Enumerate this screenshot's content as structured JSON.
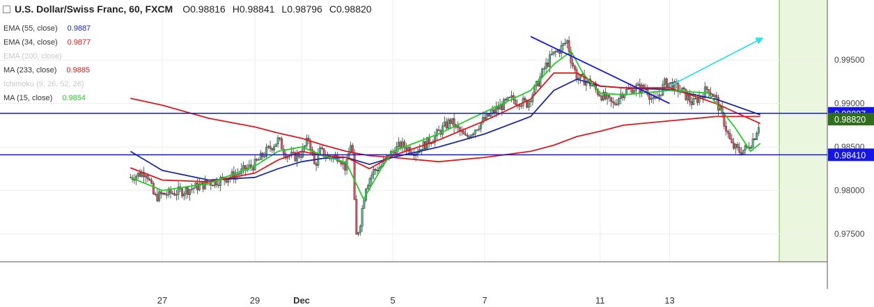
{
  "header": {
    "title": "U.S. Dollar/Swiss Franc, 60, FXCM",
    "ohlc": [
      {
        "k": "O",
        "v": "0.98816"
      },
      {
        "k": "H",
        "v": "0.98841"
      },
      {
        "k": "L",
        "v": "0.98796"
      },
      {
        "k": "C",
        "v": "0.98820"
      }
    ]
  },
  "indicators": [
    {
      "label": "EMA (55, close)",
      "value": "0.9887",
      "color": "#1a2b9c",
      "faded": false
    },
    {
      "label": "EMA (34, close)",
      "value": "0.9877",
      "color": "#e0161b",
      "faded": false
    },
    {
      "label": "EMA (200, close)",
      "value": "",
      "color": "#cccccc",
      "faded": true
    },
    {
      "label": "MA (233, close)",
      "value": "0.9885",
      "color": "#e0161b",
      "faded": false
    },
    {
      "label": "Ichimoku (9, 26, 52, 26)",
      "value": "",
      "color": "#cccccc",
      "faded": true
    },
    {
      "label": "MA (15, close)",
      "value": "0.9854",
      "color": "#22cc22",
      "faded": false
    }
  ],
  "chart_data": {
    "type": "candlestick",
    "x_tick_labels": [
      "27",
      "29",
      "Dec",
      "5",
      "7",
      "11",
      "13"
    ],
    "y_ticks": [
      0.975,
      0.98,
      0.985,
      0.99,
      0.995
    ],
    "y_tick_labels": [
      "0.97500",
      "0.98000",
      "0.98500",
      "0.99000",
      "0.99500"
    ],
    "ylim": [
      0.9718,
      1.0019
    ],
    "horizontal_levels": [
      {
        "value": 0.98887,
        "label": "0.98887",
        "color": "#1515e6"
      },
      {
        "value": 0.9841,
        "label": "0.98410",
        "color": "#1515e6"
      }
    ],
    "last_price": {
      "value": 0.9882,
      "label": "0.98820",
      "color": "#2e6e1e"
    },
    "trendlines": [
      {
        "from": [
          "Dec 8",
          0.9977
        ],
        "to": [
          "Dec 13",
          0.99
        ],
        "color": "#1515e6"
      },
      {
        "from": [
          "Dec 13",
          0.992
        ],
        "to": [
          "Dec 15",
          0.9975
        ],
        "color": "#33ddee",
        "arrow": true
      }
    ],
    "price_path": [
      [
        "Nov 26 00:00",
        0.9815
      ],
      [
        "Nov 26 12:00",
        0.9822
      ],
      [
        "Nov 26 18:00",
        0.9792
      ],
      [
        "Nov 27 00:00",
        0.9795
      ],
      [
        "Nov 27 12:00",
        0.98
      ],
      [
        "Nov 27 20:00",
        0.9806
      ],
      [
        "Nov 28 06:00",
        0.9812
      ],
      [
        "Nov 28 14:00",
        0.9818
      ],
      [
        "Nov 29 00:00",
        0.983
      ],
      [
        "Nov 29 12:00",
        0.9845
      ],
      [
        "Nov 30 00:00",
        0.9858
      ],
      [
        "Nov 30 08:00",
        0.9842
      ],
      [
        "Nov 30 16:00",
        0.9838
      ],
      [
        "Dec 1 00:00",
        0.9843
      ],
      [
        "Dec 1 08:00",
        0.986
      ],
      [
        "Dec 1 14:00",
        0.9828
      ],
      [
        "Dec 1 20:00",
        0.9845
      ],
      [
        "Dec 2 06:00",
        0.9838
      ],
      [
        "Dec 2 16:00",
        0.984
      ],
      [
        "Dec 3 00:00",
        0.9825
      ],
      [
        "Dec 3 06:00",
        0.9862
      ],
      [
        "Dec 3 10:00",
        0.9745
      ],
      [
        "Dec 3 14:00",
        0.976
      ],
      [
        "Dec 3 20:00",
        0.9805
      ],
      [
        "Dec 4 04:00",
        0.9822
      ],
      [
        "Dec 4 12:00",
        0.9828
      ],
      [
        "Dec 4 20:00",
        0.984
      ],
      [
        "Dec 5 04:00",
        0.9852
      ],
      [
        "Dec 5 12:00",
        0.9845
      ],
      [
        "Dec 5 22:00",
        0.9862
      ],
      [
        "Dec 6 06:00",
        0.988
      ],
      [
        "Dec 6 14:00",
        0.986
      ],
      [
        "Dec 6 22:00",
        0.9878
      ],
      [
        "Dec 7 06:00",
        0.9893
      ],
      [
        "Dec 7 14:00",
        0.9905
      ],
      [
        "Dec 7 22:00",
        0.99
      ],
      [
        "Dec 8 06:00",
        0.992
      ],
      [
        "Dec 8 14:00",
        0.994
      ],
      [
        "Dec 8 22:00",
        0.9955
      ],
      [
        "Dec 9 06:00",
        0.9962
      ],
      [
        "Dec 9 14:00",
        0.9972
      ],
      [
        "Dec 9 18:00",
        0.995
      ],
      [
        "Dec 10 00:00",
        0.993
      ],
      [
        "Dec 10 12:00",
        0.9925
      ],
      [
        "Dec 10 20:00",
        0.9915
      ],
      [
        "Dec 11 06:00",
        0.9905
      ],
      [
        "Dec 11 14:00",
        0.9898
      ],
      [
        "Dec 11 22:00",
        0.9912
      ],
      [
        "Dec 12 06:00",
        0.9918
      ],
      [
        "Dec 12 12:00",
        0.9917
      ],
      [
        "Dec 12 16:00",
        0.99
      ],
      [
        "Dec 12 22:00",
        0.9925
      ],
      [
        "Dec 13 06:00",
        0.9915
      ],
      [
        "Dec 13 12:00",
        0.99
      ],
      [
        "Dec 13 20:00",
        0.9918
      ],
      [
        "Dec 14 00:00",
        0.9905
      ],
      [
        "Dec 14 04:00",
        0.988
      ],
      [
        "Dec 14 08:00",
        0.9852
      ],
      [
        "Dec 14 12:00",
        0.9845
      ],
      [
        "Dec 14 16:00",
        0.9848
      ],
      [
        "Dec 14 20:00",
        0.9862
      ],
      [
        "Dec 14 23:00",
        0.9882
      ]
    ],
    "moving_averages": [
      {
        "name": "MA (233, close)",
        "color": "#e0161b",
        "points": [
          [
            "Nov 26 00:00",
            0.9906
          ],
          [
            "Nov 27 00:00",
            0.9898
          ],
          [
            "Nov 28 00:00",
            0.9883
          ],
          [
            "Nov 29 00:00",
            0.9873
          ],
          [
            "Nov 30 00:00",
            0.9866
          ],
          [
            "Dec 1 00:00",
            0.986
          ],
          [
            "Dec 2 00:00",
            0.9852
          ],
          [
            "Dec 3 00:00",
            0.9845
          ],
          [
            "Dec 4 00:00",
            0.984
          ],
          [
            "Dec 5 00:00",
            0.9838
          ],
          [
            "Dec 6 00:00",
            0.9833
          ],
          [
            "Dec 7 00:00",
            0.9838
          ],
          [
            "Dec 8 00:00",
            0.9845
          ],
          [
            "Dec 9 00:00",
            0.9852
          ],
          [
            "Dec 10 00:00",
            0.9862
          ],
          [
            "Dec 11 00:00",
            0.9868
          ],
          [
            "Dec 12 00:00",
            0.9875
          ],
          [
            "Dec 13 00:00",
            0.988
          ],
          [
            "Dec 14 00:00",
            0.9885
          ],
          [
            "Dec 14 23:00",
            0.9885
          ]
        ]
      },
      {
        "name": "EMA (55, close)",
        "color": "#1a2b9c",
        "points": [
          [
            "Nov 26 00:00",
            0.9845
          ],
          [
            "Nov 27 00:00",
            0.9823
          ],
          [
            "Nov 28 00:00",
            0.9812
          ],
          [
            "Nov 29 00:00",
            0.9815
          ],
          [
            "Nov 30 00:00",
            0.9825
          ],
          [
            "Dec 1 00:00",
            0.9833
          ],
          [
            "Dec 2 00:00",
            0.9837
          ],
          [
            "Dec 3 00:00",
            0.9838
          ],
          [
            "Dec 4 00:00",
            0.983
          ],
          [
            "Dec 5 00:00",
            0.9838
          ],
          [
            "Dec 6 00:00",
            0.985
          ],
          [
            "Dec 7 00:00",
            0.9865
          ],
          [
            "Dec 8 00:00",
            0.9885
          ],
          [
            "Dec 9 00:00",
            0.9915
          ],
          [
            "Dec 10 00:00",
            0.9928
          ],
          [
            "Dec 11 00:00",
            0.992
          ],
          [
            "Dec 12 00:00",
            0.9918
          ],
          [
            "Dec 13 00:00",
            0.9916
          ],
          [
            "Dec 14 00:00",
            0.9905
          ],
          [
            "Dec 14 23:00",
            0.9887
          ]
        ]
      },
      {
        "name": "EMA (34, close)",
        "color": "#e0161b",
        "points": [
          [
            "Nov 26 00:00",
            0.9826
          ],
          [
            "Nov 27 00:00",
            0.9812
          ],
          [
            "Nov 28 00:00",
            0.981
          ],
          [
            "Nov 29 00:00",
            0.982
          ],
          [
            "Nov 30 00:00",
            0.9835
          ],
          [
            "Dec 1 00:00",
            0.9845
          ],
          [
            "Dec 2 00:00",
            0.984
          ],
          [
            "Dec 3 00:00",
            0.9838
          ],
          [
            "Dec 4 00:00",
            0.9825
          ],
          [
            "Dec 5 00:00",
            0.984
          ],
          [
            "Dec 6 00:00",
            0.9858
          ],
          [
            "Dec 7 00:00",
            0.988
          ],
          [
            "Dec 8 00:00",
            0.9905
          ],
          [
            "Dec 9 00:00",
            0.9935
          ],
          [
            "Dec 10 00:00",
            0.9935
          ],
          [
            "Dec 11 00:00",
            0.992
          ],
          [
            "Dec 12 00:00",
            0.9918
          ],
          [
            "Dec 13 00:00",
            0.9918
          ],
          [
            "Dec 14 00:00",
            0.99
          ],
          [
            "Dec 14 23:00",
            0.9877
          ]
        ]
      },
      {
        "name": "MA (15, close)",
        "color": "#22cc22",
        "points": [
          [
            "Nov 26 00:00",
            0.9815
          ],
          [
            "Nov 27 00:00",
            0.98
          ],
          [
            "Nov 28 00:00",
            0.9808
          ],
          [
            "Nov 29 00:00",
            0.9828
          ],
          [
            "Nov 30 00:00",
            0.9845
          ],
          [
            "Dec 1 00:00",
            0.985
          ],
          [
            "Dec 2 00:00",
            0.984
          ],
          [
            "Dec 3 00:00",
            0.9832
          ],
          [
            "Dec 3 18:00",
            0.979
          ],
          [
            "Dec 4 12:00",
            0.9825
          ],
          [
            "Dec 5 00:00",
            0.9845
          ],
          [
            "Dec 6 00:00",
            0.9865
          ],
          [
            "Dec 7 00:00",
            0.989
          ],
          [
            "Dec 8 00:00",
            0.9915
          ],
          [
            "Dec 9 00:00",
            0.9945
          ],
          [
            "Dec 9 18:00",
            0.996
          ],
          [
            "Dec 10 06:00",
            0.9935
          ],
          [
            "Dec 11 00:00",
            0.9912
          ],
          [
            "Dec 12 00:00",
            0.991
          ],
          [
            "Dec 13 00:00",
            0.9915
          ],
          [
            "Dec 13 20:00",
            0.9912
          ],
          [
            "Dec 14 10:00",
            0.9872
          ],
          [
            "Dec 14 18:00",
            0.9845
          ],
          [
            "Dec 14 23:00",
            0.9854
          ]
        ]
      }
    ],
    "axis_line_color": "#555555",
    "candle_up_color": "#53b987",
    "candle_down_color": "#eb4d5c",
    "projection_zone_color": "#eaf7de",
    "projection_zone_border": "#6abf3c"
  }
}
